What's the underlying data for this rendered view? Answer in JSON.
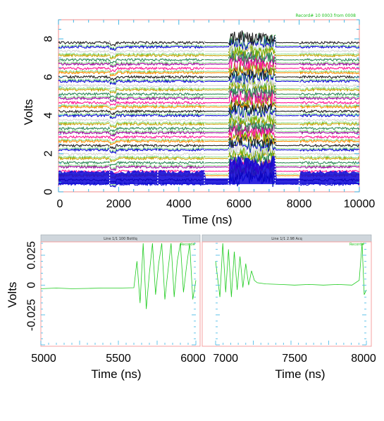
{
  "figure": {
    "colors": {
      "frame": "#f4a0a0",
      "tick": "#3fb7e6",
      "panel_bar": "#cfd6dc",
      "legend_green": "#21c21e",
      "trace_green": "#1ecb1e",
      "blue_base": "#0a00d8"
    }
  },
  "chart_data": [
    {
      "type": "line",
      "title": "",
      "xlabel": "Time (ns)",
      "ylabel": "Volts",
      "xlim": [
        0,
        10000
      ],
      "ylim": [
        0,
        9
      ],
      "xticks": [
        0,
        2000,
        4000,
        6000,
        8000,
        10000
      ],
      "yticks": [
        0,
        2,
        4,
        6,
        8
      ],
      "xtick_labels": [
        "0",
        "2000",
        "4000",
        "6000",
        "8000",
        "10000"
      ],
      "ytick_labels": [
        "0",
        "2",
        "4",
        "6",
        "8"
      ],
      "legend_text": "Record# 10 0003 from 0008",
      "series_colors": [
        "#0a00d8",
        "#1f1f1f",
        "#ff8c00",
        "#ff1493",
        "#a000a0",
        "#2e8b57",
        "#c8a000",
        "#d8d8d8"
      ],
      "bundle": {
        "min_level": 0.4,
        "max_level": 7.8,
        "segments": [
          {
            "start": 0,
            "end": 1700,
            "state": "active"
          },
          {
            "start": 1700,
            "end": 1900,
            "state": "dip"
          },
          {
            "start": 1900,
            "end": 3300,
            "state": "active"
          },
          {
            "start": 3300,
            "end": 4850,
            "state": "active"
          },
          {
            "start": 4850,
            "end": 5650,
            "state": "quiet"
          },
          {
            "start": 5650,
            "end": 7200,
            "state": "noisy"
          },
          {
            "start": 7200,
            "end": 8000,
            "state": "quiet"
          },
          {
            "start": 8000,
            "end": 10000,
            "state": "active"
          }
        ]
      },
      "grid": false,
      "legend": "top-right"
    },
    {
      "type": "line",
      "title": "",
      "panel_header": "Line 1/1 100 Bottlq",
      "panel_legend": "Record#",
      "xlabel": "Time (ns)",
      "ylabel": "Volts",
      "xlim": [
        5000,
        6000
      ],
      "ylim": [
        -0.05,
        0.035
      ],
      "xticks": [
        5000,
        5500,
        6000
      ],
      "yticks": [
        -0.025,
        0,
        0.025
      ],
      "xtick_labels": [
        "5000",
        "5500",
        "6000"
      ],
      "ytick_labels": [
        "-0.025",
        "0",
        "0.025"
      ],
      "series": [
        {
          "color": "#1ecb1e",
          "x": [
            5000,
            5100,
            5200,
            5300,
            5400,
            5500,
            5600,
            5620,
            5640,
            5660,
            5680,
            5700,
            5720,
            5740,
            5760,
            5780,
            5800,
            5820,
            5840,
            5860,
            5880,
            5900,
            5920,
            5940,
            5960,
            5980,
            6000
          ],
          "y": [
            -0.003,
            -0.0025,
            -0.003,
            -0.0028,
            -0.0025,
            -0.0025,
            -0.0022,
            0.02,
            -0.015,
            0.035,
            -0.02,
            0.01,
            0.035,
            -0.008,
            0.018,
            0.035,
            -0.012,
            0.012,
            0.035,
            -0.01,
            0.02,
            0.035,
            -0.006,
            0.016,
            0.035,
            -0.012,
            0.004
          ]
        }
      ],
      "grid": false,
      "legend": "top-right"
    },
    {
      "type": "line",
      "title": "",
      "panel_header": "Line 1/1 2.98 Acq",
      "panel_legend": "Record#",
      "xlabel": "Time (ns)",
      "ylabel": "",
      "xlim": [
        6950,
        8000
      ],
      "ylim": [
        -0.05,
        0.035
      ],
      "xticks": [
        7000,
        7500,
        8000
      ],
      "xtick_labels": [
        "7000",
        "7500",
        "8000"
      ],
      "series": [
        {
          "color": "#1ecb1e",
          "x": [
            6950,
            6980,
            7000,
            7020,
            7040,
            7060,
            7080,
            7100,
            7120,
            7140,
            7160,
            7180,
            7200,
            7220,
            7240,
            7300,
            7400,
            7500,
            7600,
            7700,
            7800,
            7900,
            7950,
            7970,
            7985,
            8000
          ],
          "y": [
            0.02,
            -0.01,
            0.035,
            -0.006,
            0.03,
            -0.01,
            0.028,
            -0.004,
            0.024,
            -0.002,
            0.018,
            0.0,
            0.012,
            0.004,
            0.002,
            0.001,
            0.0005,
            0.0,
            0.0005,
            0.0,
            0.0005,
            0.0,
            0.004,
            0.035,
            -0.008,
            -0.004
          ]
        }
      ],
      "grid": false,
      "legend": "top-right"
    }
  ]
}
